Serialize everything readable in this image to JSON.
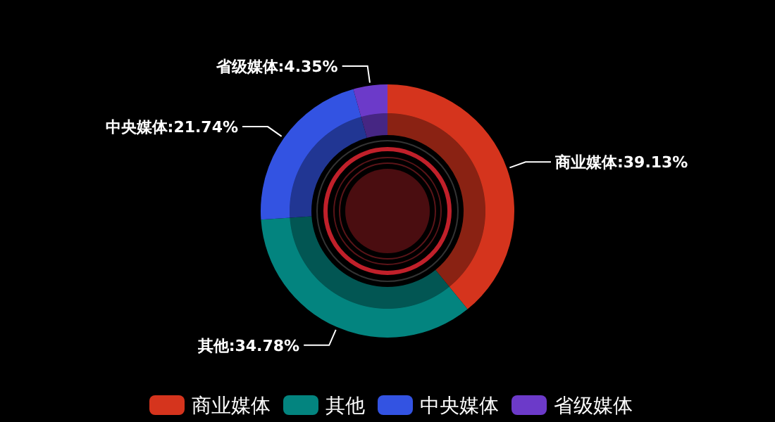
{
  "chart_data": {
    "type": "donut",
    "categories": [
      "商业媒体",
      "其他",
      "中央媒体",
      "省级媒体"
    ],
    "values": [
      39.13,
      34.78,
      21.74,
      4.35
    ],
    "value_labels": [
      "商业媒体:39.13%",
      "其他:34.78%",
      "中央媒体:21.74%",
      "省级媒体:4.35%"
    ],
    "colors": [
      "#d5341d",
      "#03847f",
      "#3353e2",
      "#6c3ac9"
    ],
    "legend": "bottom"
  }
}
